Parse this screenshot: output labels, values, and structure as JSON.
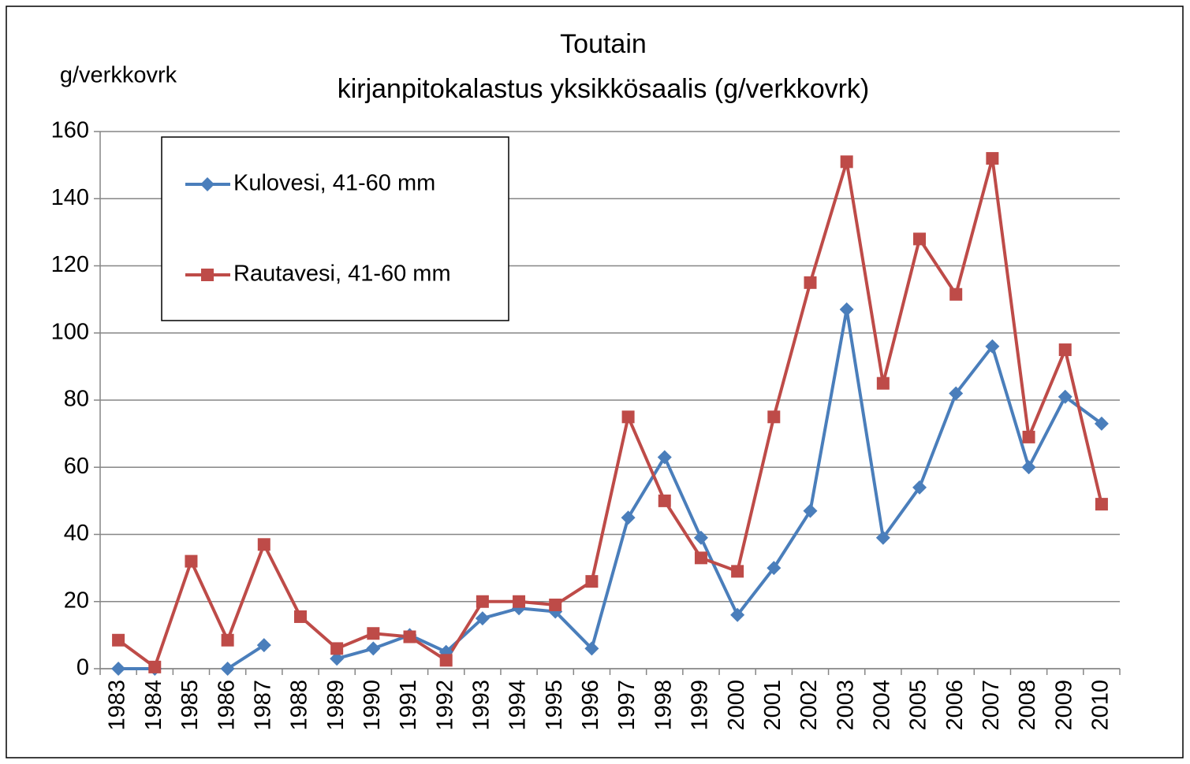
{
  "chart_data": {
    "type": "line",
    "title": "Toutain",
    "subtitle": "kirjanpitokalastus yksikkösaalis (g/verkkovrk)",
    "y_label": "g/verkkovrk",
    "categories": [
      "1983",
      "1984",
      "1985",
      "1986",
      "1987",
      "1988",
      "1989",
      "1990",
      "1991",
      "1992",
      "1993",
      "1994",
      "1995",
      "1996",
      "1997",
      "1998",
      "1999",
      "2000",
      "2001",
      "2002",
      "2003",
      "2004",
      "2005",
      "2006",
      "2007",
      "2008",
      "2009",
      "2010"
    ],
    "series": [
      {
        "name": "Kulovesi, 41-60 mm",
        "color": "#4a7ebb",
        "marker": "diamond",
        "values": [
          0,
          0,
          null,
          0,
          7,
          null,
          3,
          6,
          10,
          5,
          15,
          18,
          17,
          6,
          45,
          63,
          39,
          16,
          30,
          47,
          107,
          39,
          54,
          82,
          96,
          60,
          81,
          73
        ]
      },
      {
        "name": "Rautavesi, 41-60 mm",
        "color": "#be4b48",
        "marker": "square",
        "values": [
          8.5,
          0.5,
          32,
          8.5,
          37,
          15.5,
          6,
          10.5,
          9.5,
          2.5,
          20,
          20,
          19,
          26,
          75,
          50,
          33,
          29,
          75,
          115,
          151,
          85,
          128,
          111.5,
          152,
          69,
          95,
          49
        ]
      }
    ],
    "ylim": [
      0,
      160
    ],
    "yticks": [
      0,
      20,
      40,
      60,
      80,
      100,
      120,
      140,
      160
    ],
    "grid": true
  }
}
